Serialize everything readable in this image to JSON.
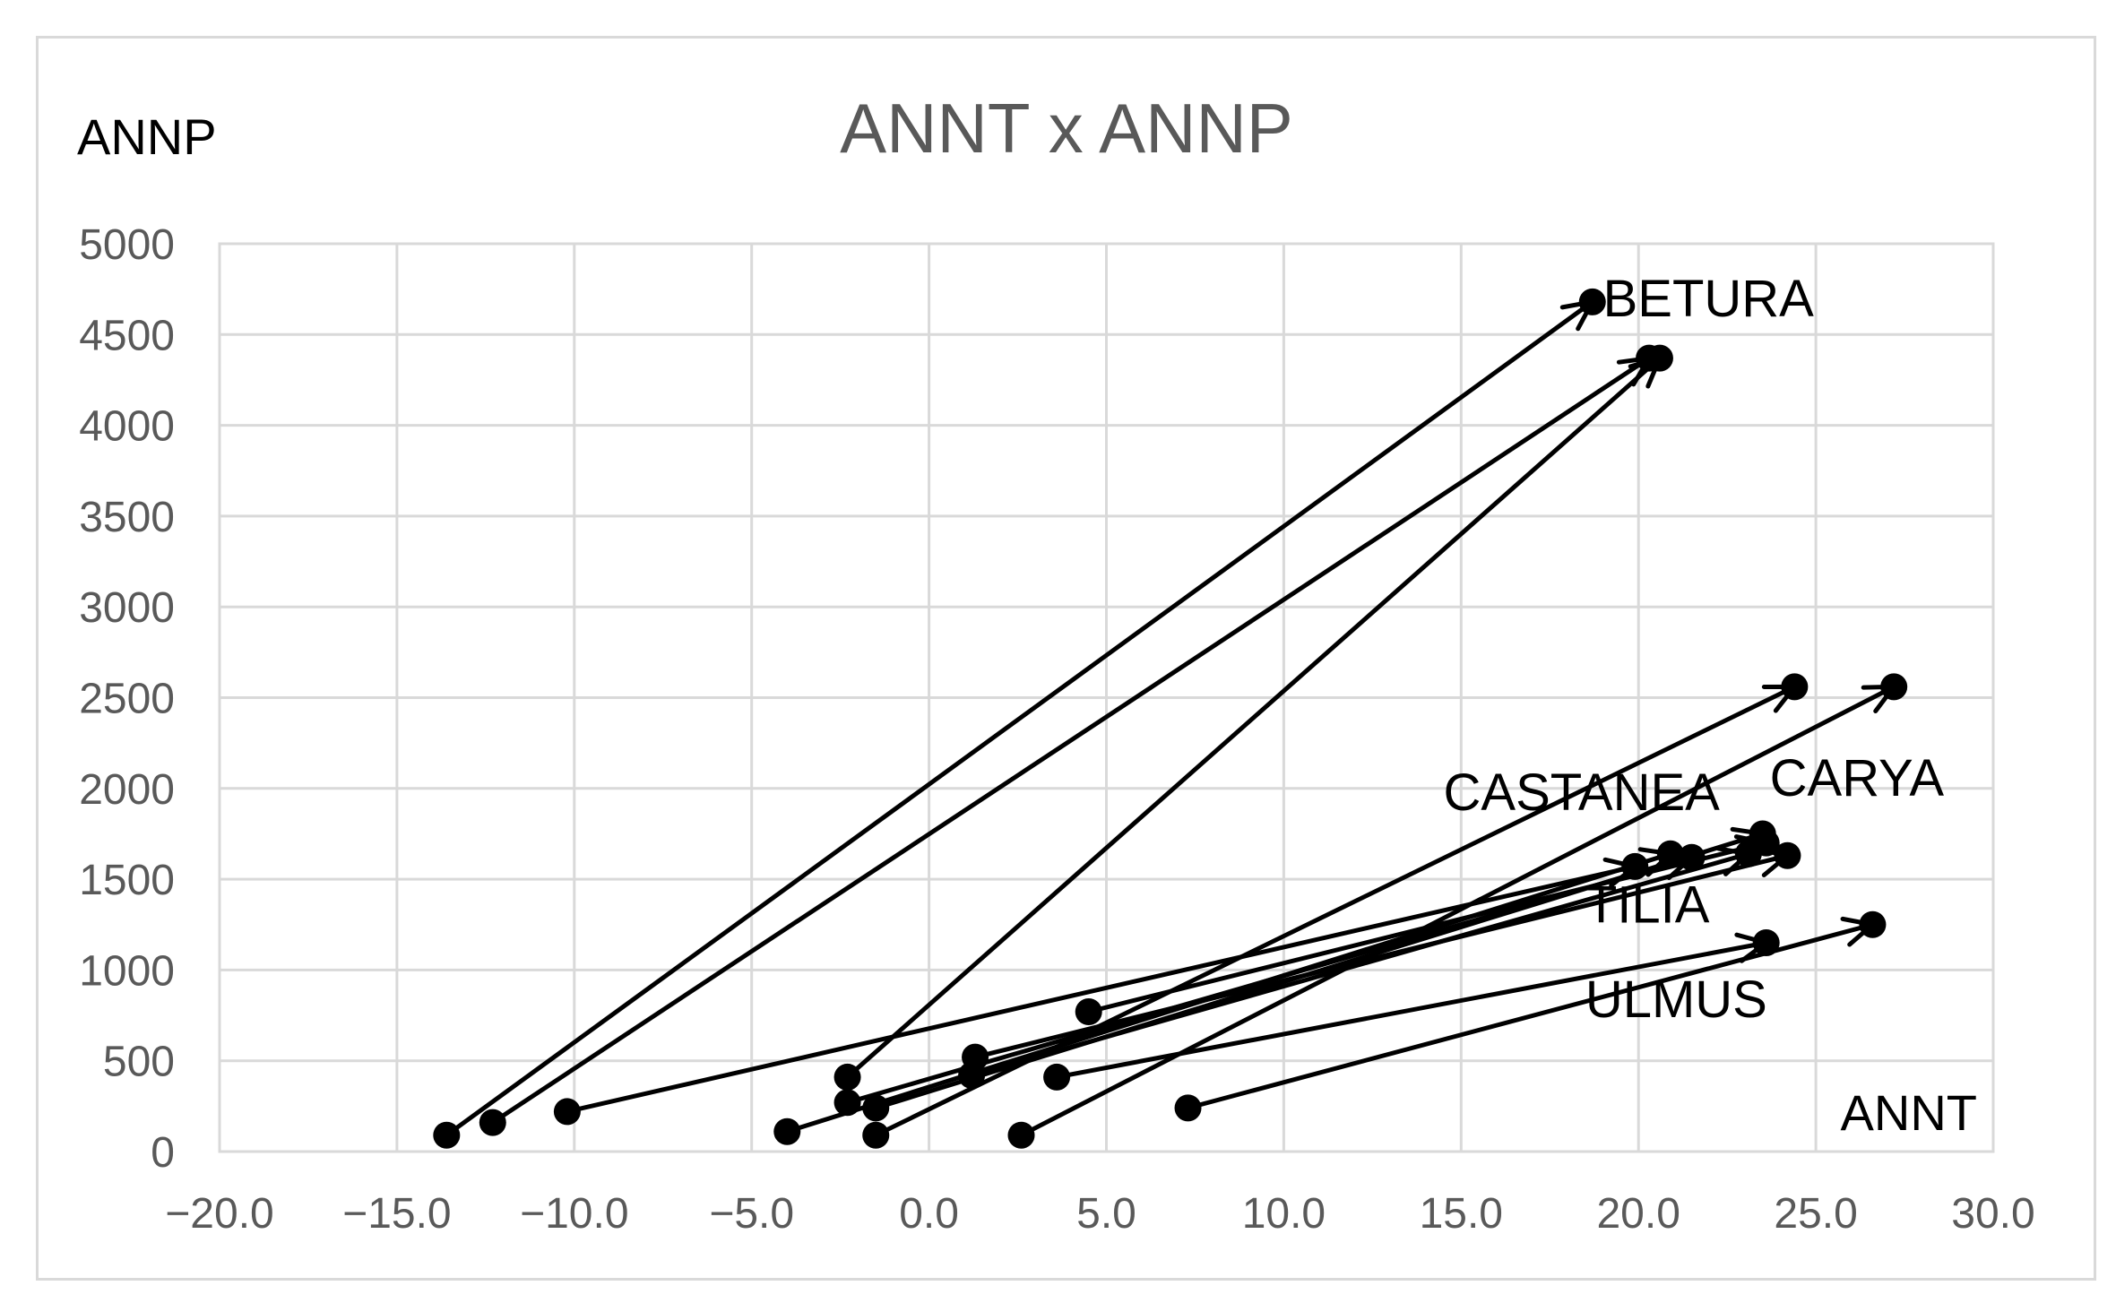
{
  "chart_data": {
    "type": "scatter",
    "title": "ANNT x ANNP",
    "xlabel": "ANNT",
    "ylabel": "ANNP",
    "xlim": [
      -20,
      30
    ],
    "ylim": [
      0,
      5000
    ],
    "x_ticks": [
      "−20.0",
      "−15.0",
      "−10.0",
      "−5.0",
      "0.0",
      "5.0",
      "10.0",
      "15.0",
      "20.0",
      "25.0",
      "30.0"
    ],
    "y_ticks": [
      "0",
      "500",
      "1000",
      "1500",
      "2000",
      "2500",
      "3000",
      "3500",
      "4000",
      "4500",
      "5000"
    ],
    "grid": true,
    "legend": "none",
    "annotations": [
      {
        "text": "BETURA",
        "x": 19.0,
        "y": 4600
      },
      {
        "text": "CASTANEA",
        "x": 14.5,
        "y": 1880
      },
      {
        "text": "CARYA",
        "x": 23.7,
        "y": 1960
      },
      {
        "text": "TILIA",
        "x": 18.5,
        "y": 1260
      },
      {
        "text": "ULMUS",
        "x": 18.5,
        "y": 740
      }
    ],
    "arrows": [
      {
        "x0": -13.6,
        "y0": 90,
        "x1": 18.7,
        "y1": 4680
      },
      {
        "x0": -12.3,
        "y0": 160,
        "x1": 20.3,
        "y1": 4370
      },
      {
        "x0": -2.3,
        "y0": 410,
        "x1": 20.6,
        "y1": 4370
      },
      {
        "x0": -10.2,
        "y0": 220,
        "x1": 19.9,
        "y1": 1570
      },
      {
        "x0": -4.0,
        "y0": 110,
        "x1": 20.9,
        "y1": 1640
      },
      {
        "x0": -2.3,
        "y0": 270,
        "x1": 21.5,
        "y1": 1620
      },
      {
        "x0": -1.5,
        "y0": 90,
        "x1": 24.4,
        "y1": 2560
      },
      {
        "x0": 2.6,
        "y0": 90,
        "x1": 27.2,
        "y1": 2560
      },
      {
        "x0": -1.5,
        "y0": 240,
        "x1": 23.5,
        "y1": 1750
      },
      {
        "x0": 1.2,
        "y0": 420,
        "x1": 23.1,
        "y1": 1640
      },
      {
        "x0": 1.3,
        "y0": 520,
        "x1": 24.2,
        "y1": 1630
      },
      {
        "x0": 4.5,
        "y0": 770,
        "x1": 23.6,
        "y1": 1700
      },
      {
        "x0": 3.6,
        "y0": 410,
        "x1": 23.6,
        "y1": 1150
      },
      {
        "x0": 7.3,
        "y0": 240,
        "x1": 26.6,
        "y1": 1250
      }
    ]
  }
}
